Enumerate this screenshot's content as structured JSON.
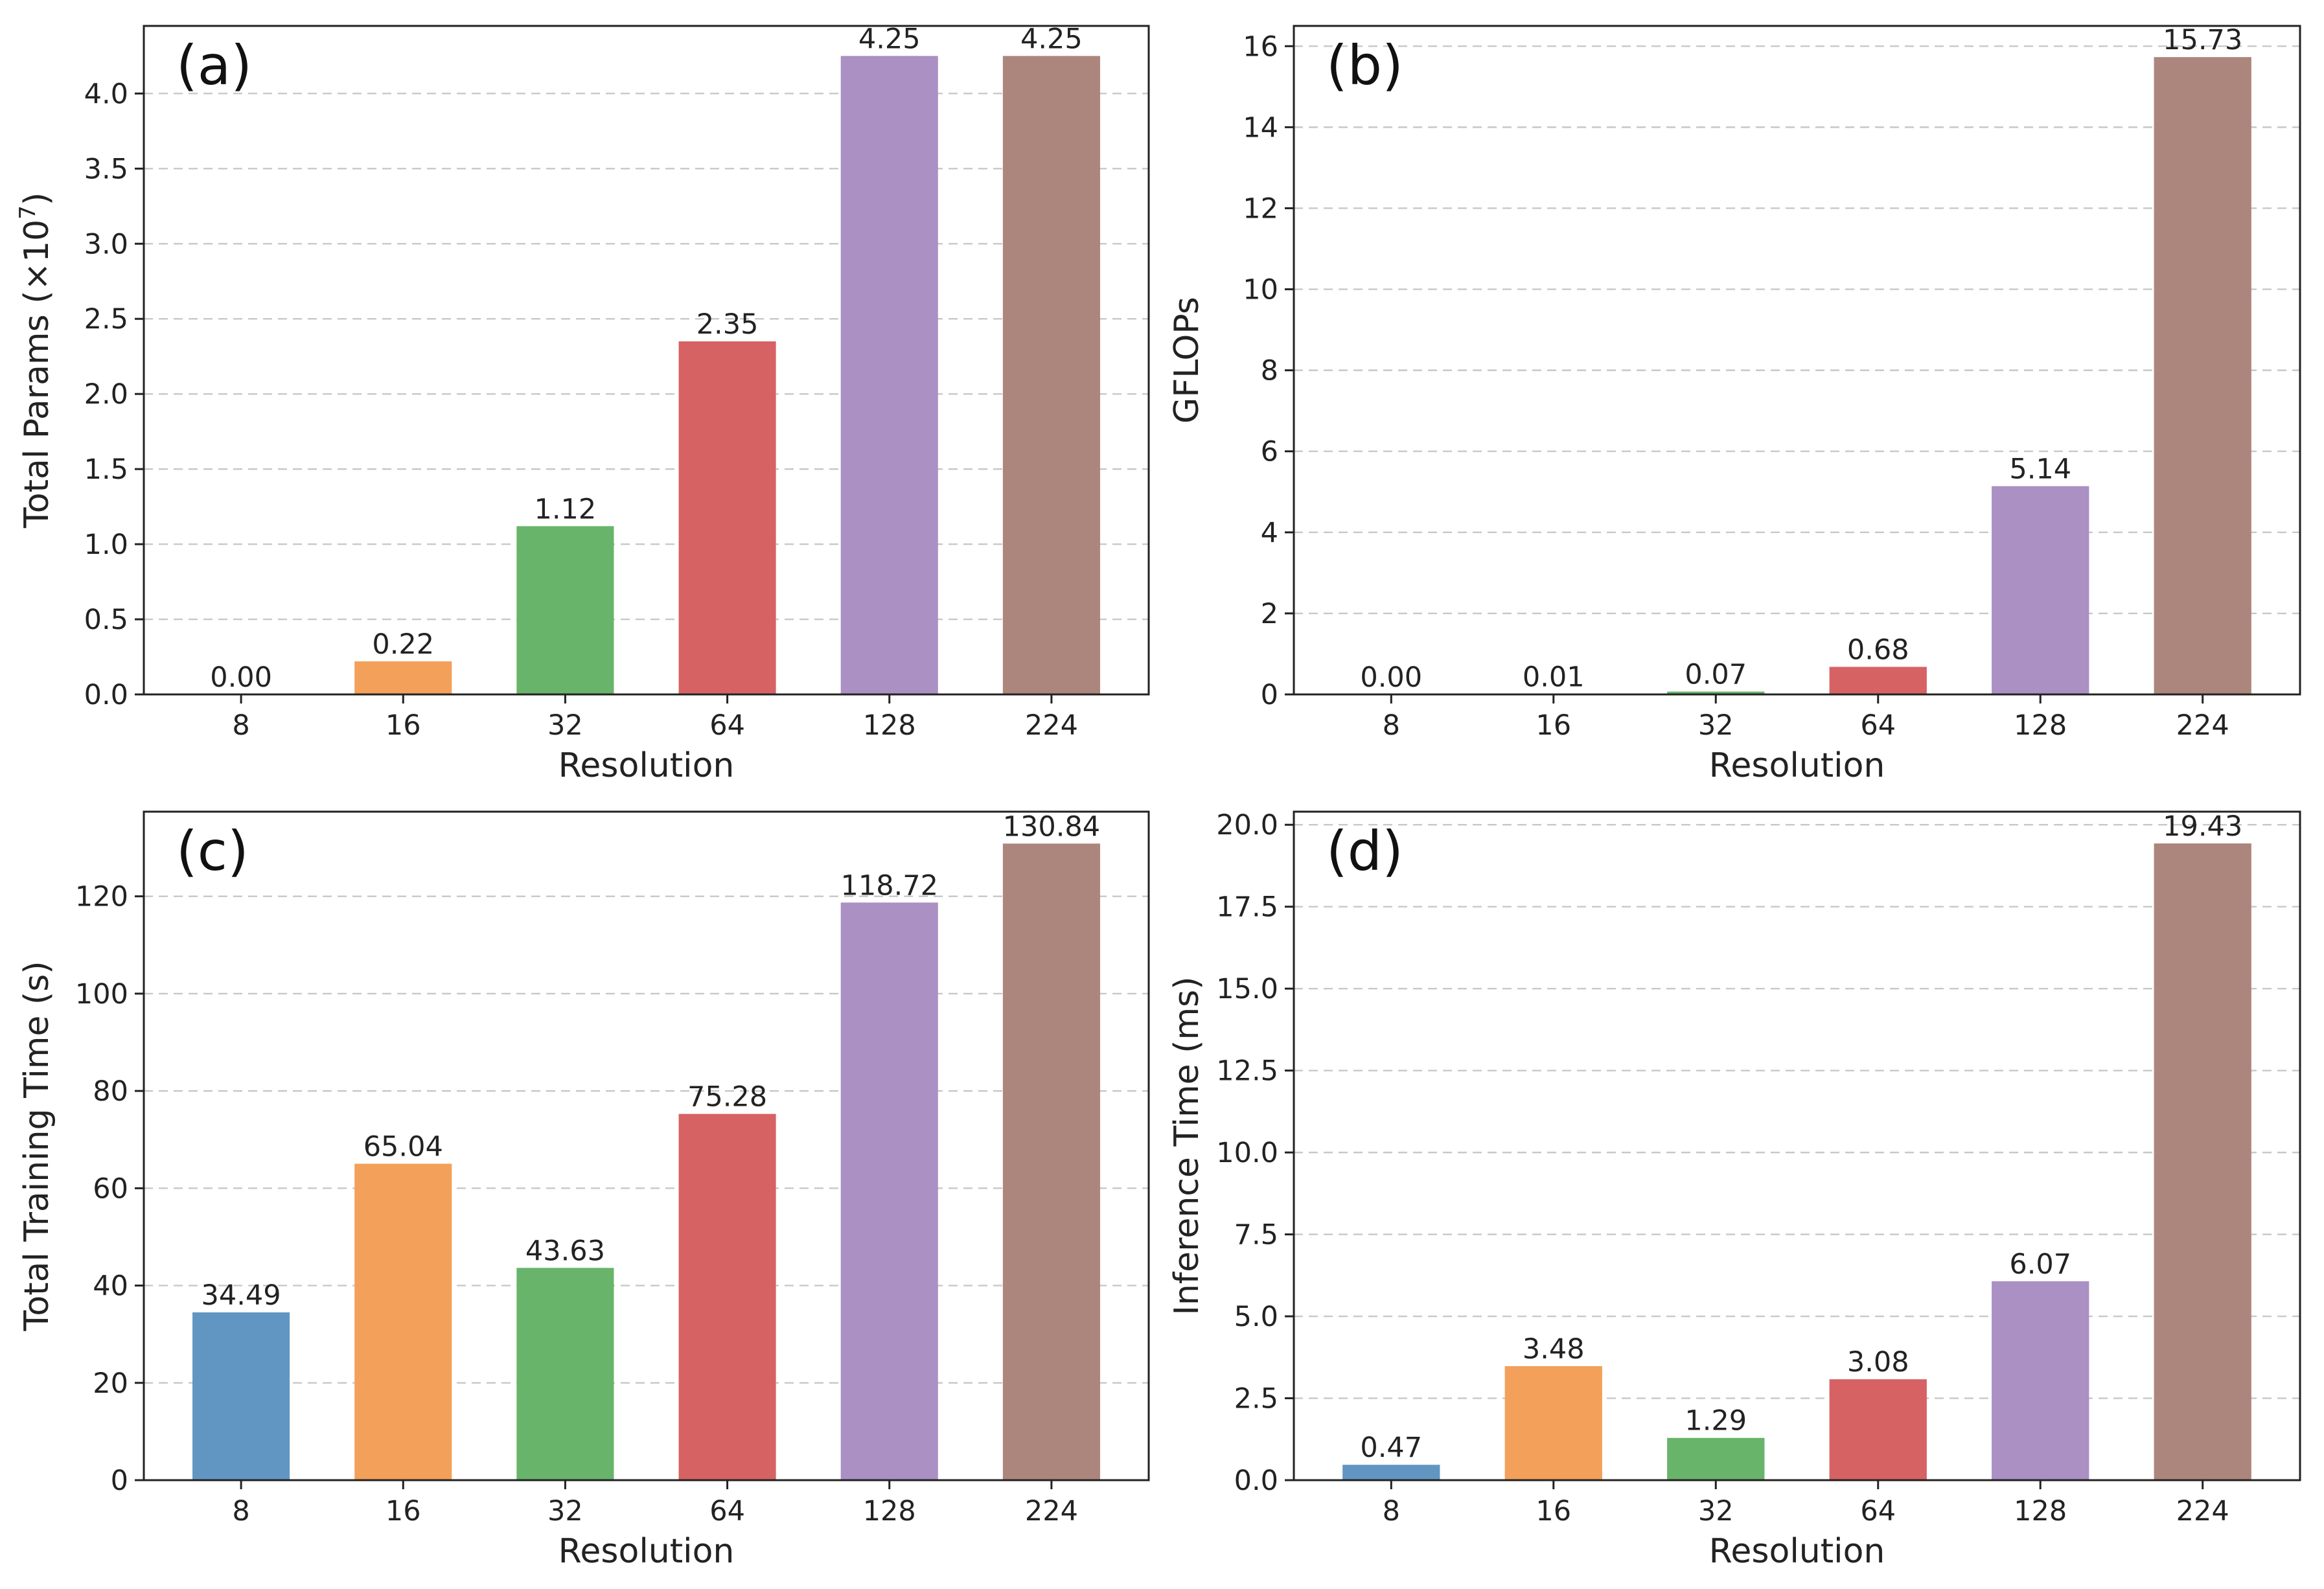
{
  "chart_data": [
    {
      "type": "bar",
      "panel": "(a)",
      "xlabel": "Resolution",
      "ylabel": "Total Params (×10",
      "ylabel_exponent": "7",
      "ylabel_close": ")",
      "categories": [
        "8",
        "16",
        "32",
        "64",
        "128",
        "224"
      ],
      "values": [
        0.0,
        0.22,
        1.12,
        2.35,
        4.25,
        4.25
      ],
      "value_labels": [
        "0.00",
        "0.22",
        "1.12",
        "2.35",
        "4.25",
        "4.25"
      ],
      "yticks": [
        "0.0",
        "0.5",
        "1.0",
        "1.5",
        "2.0",
        "2.5",
        "3.0",
        "3.5",
        "4.0"
      ],
      "ylim": [
        0,
        4.45
      ],
      "grid": true
    },
    {
      "type": "bar",
      "panel": "(b)",
      "xlabel": "Resolution",
      "ylabel": "GFLOPs",
      "categories": [
        "8",
        "16",
        "32",
        "64",
        "128",
        "224"
      ],
      "values": [
        0.0,
        0.01,
        0.07,
        0.68,
        5.14,
        15.73
      ],
      "value_labels": [
        "0.00",
        "0.01",
        "0.07",
        "0.68",
        "5.14",
        "15.73"
      ],
      "yticks": [
        "0",
        "2",
        "4",
        "6",
        "8",
        "10",
        "12",
        "14",
        "16"
      ],
      "ylim": [
        0,
        16.5
      ],
      "grid": true
    },
    {
      "type": "bar",
      "panel": "(c)",
      "xlabel": "Resolution",
      "ylabel": "Total Training Time (s)",
      "categories": [
        "8",
        "16",
        "32",
        "64",
        "128",
        "224"
      ],
      "values": [
        34.49,
        65.04,
        43.63,
        75.28,
        118.72,
        130.84
      ],
      "value_labels": [
        "34.49",
        "65.04",
        "43.63",
        "75.28",
        "118.72",
        "130.84"
      ],
      "yticks": [
        "0",
        "20",
        "40",
        "60",
        "80",
        "100",
        "120"
      ],
      "ylim": [
        0,
        137.4
      ],
      "grid": true
    },
    {
      "type": "bar",
      "panel": "(d)",
      "xlabel": "Resolution",
      "ylabel": "Inference Time (ms)",
      "categories": [
        "8",
        "16",
        "32",
        "64",
        "128",
        "224"
      ],
      "values": [
        0.47,
        3.48,
        1.29,
        3.08,
        6.07,
        19.43
      ],
      "value_labels": [
        "0.47",
        "3.48",
        "1.29",
        "3.08",
        "6.07",
        "19.43"
      ],
      "yticks": [
        "0.0",
        "2.5",
        "5.0",
        "7.5",
        "10.0",
        "12.5",
        "15.0",
        "17.5",
        "20.0"
      ],
      "ylim": [
        0,
        20.4
      ],
      "grid": true
    }
  ],
  "colors": [
    "#6296c2",
    "#f3a05a",
    "#68b46a",
    "#d66264",
    "#aa90c3",
    "#ac857c"
  ]
}
